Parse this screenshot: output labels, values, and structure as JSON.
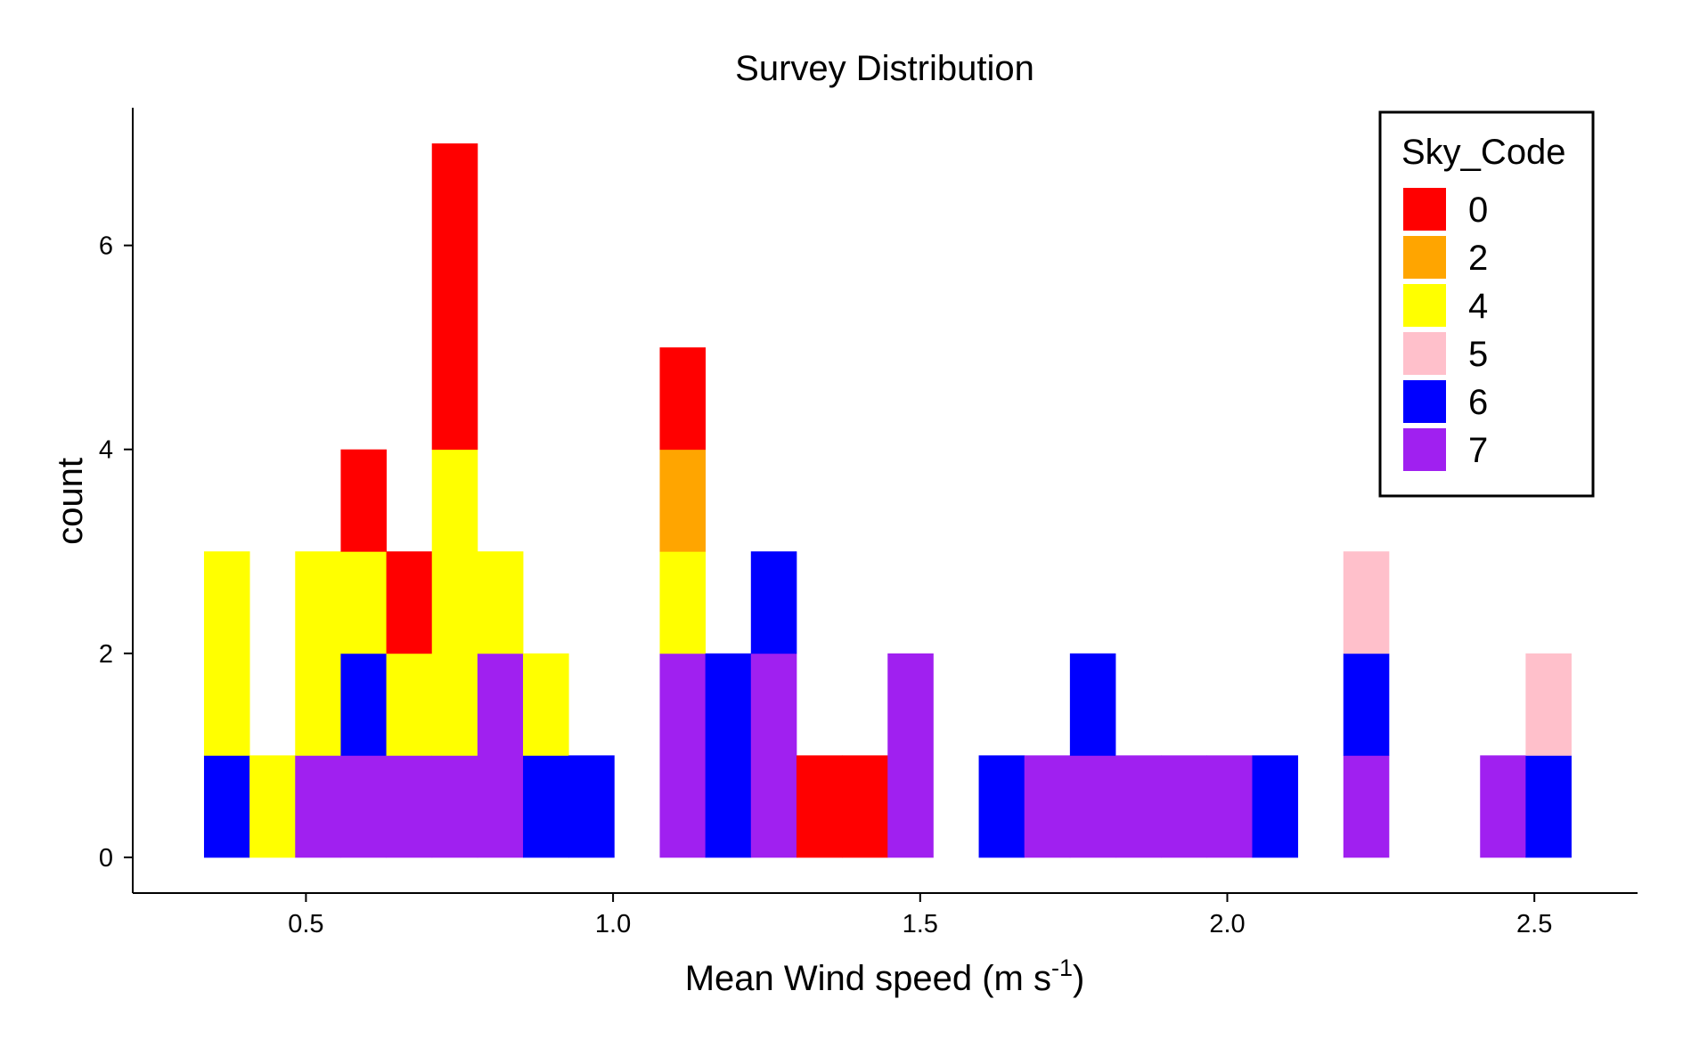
{
  "chart_data": {
    "type": "bar",
    "subtype": "stacked-histogram",
    "title": "Survey Distribution",
    "xlabel": {
      "main": "Mean Wind speed (m s",
      "sup": "-1",
      "close": ")"
    },
    "ylabel": "count",
    "xlim": [
      0.218,
      2.668
    ],
    "ylim": [
      -0.35,
      7.35
    ],
    "bin_width": 0.0742,
    "bin_start": 0.334,
    "x_ticks": [
      {
        "value": 0.5,
        "label": "0.5"
      },
      {
        "value": 1.0,
        "label": "1.0"
      },
      {
        "value": 1.5,
        "label": "1.5"
      },
      {
        "value": 2.0,
        "label": "2.0"
      },
      {
        "value": 2.5,
        "label": "2.5"
      }
    ],
    "y_ticks": [
      {
        "value": 0,
        "label": "0"
      },
      {
        "value": 2,
        "label": "2"
      },
      {
        "value": 4,
        "label": "4"
      },
      {
        "value": 6,
        "label": "6"
      }
    ],
    "grid": false,
    "legend": {
      "title": "Sky_Code",
      "position": "top-right",
      "entries": [
        {
          "code": "0",
          "color": "#FF0000"
        },
        {
          "code": "2",
          "color": "#FFA500"
        },
        {
          "code": "4",
          "color": "#FFFF00"
        },
        {
          "code": "5",
          "color": "#FFC0CB"
        },
        {
          "code": "6",
          "color": "#0000FF"
        },
        {
          "code": "7",
          "color": "#A020F0"
        }
      ]
    },
    "stack_order_bottom_to_top": [
      "7",
      "6",
      "5",
      "4",
      "2",
      "0"
    ],
    "series": [
      {
        "code": "7",
        "color": "#A020F0",
        "values": [
          0,
          0,
          1,
          1,
          1,
          1,
          2,
          0,
          0,
          0,
          2,
          0,
          2,
          0,
          0,
          2,
          0,
          0,
          1,
          1,
          1,
          1,
          1,
          0,
          0,
          1,
          0,
          0,
          1,
          0
        ]
      },
      {
        "code": "6",
        "color": "#0000FF",
        "values": [
          1,
          0,
          0,
          1,
          0,
          0,
          0,
          1,
          1,
          0,
          0,
          2,
          1,
          0,
          0,
          0,
          0,
          1,
          0,
          1,
          0,
          0,
          0,
          1,
          0,
          1,
          0,
          0,
          0,
          1
        ]
      },
      {
        "code": "5",
        "color": "#FFC0CB",
        "values": [
          0,
          0,
          0,
          0,
          0,
          0,
          0,
          0,
          0,
          0,
          0,
          0,
          0,
          0,
          0,
          0,
          0,
          0,
          0,
          0,
          0,
          0,
          0,
          0,
          0,
          1,
          0,
          0,
          0,
          1
        ]
      },
      {
        "code": "4",
        "color": "#FFFF00",
        "values": [
          2,
          1,
          2,
          1,
          1,
          3,
          1,
          1,
          0,
          0,
          1,
          0,
          0,
          0,
          0,
          0,
          0,
          0,
          0,
          0,
          0,
          0,
          0,
          0,
          0,
          0,
          0,
          0,
          0,
          0
        ]
      },
      {
        "code": "2",
        "color": "#FFA500",
        "values": [
          0,
          0,
          0,
          0,
          0,
          0,
          0,
          0,
          0,
          0,
          1,
          0,
          0,
          0,
          0,
          0,
          0,
          0,
          0,
          0,
          0,
          0,
          0,
          0,
          0,
          0,
          0,
          0,
          0,
          0
        ]
      },
      {
        "code": "0",
        "color": "#FF0000",
        "values": [
          0,
          0,
          0,
          1,
          1,
          3,
          0,
          0,
          0,
          0,
          1,
          0,
          0,
          1,
          1,
          0,
          0,
          0,
          0,
          0,
          0,
          0,
          0,
          0,
          0,
          0,
          0,
          0,
          0,
          0
        ]
      }
    ]
  }
}
